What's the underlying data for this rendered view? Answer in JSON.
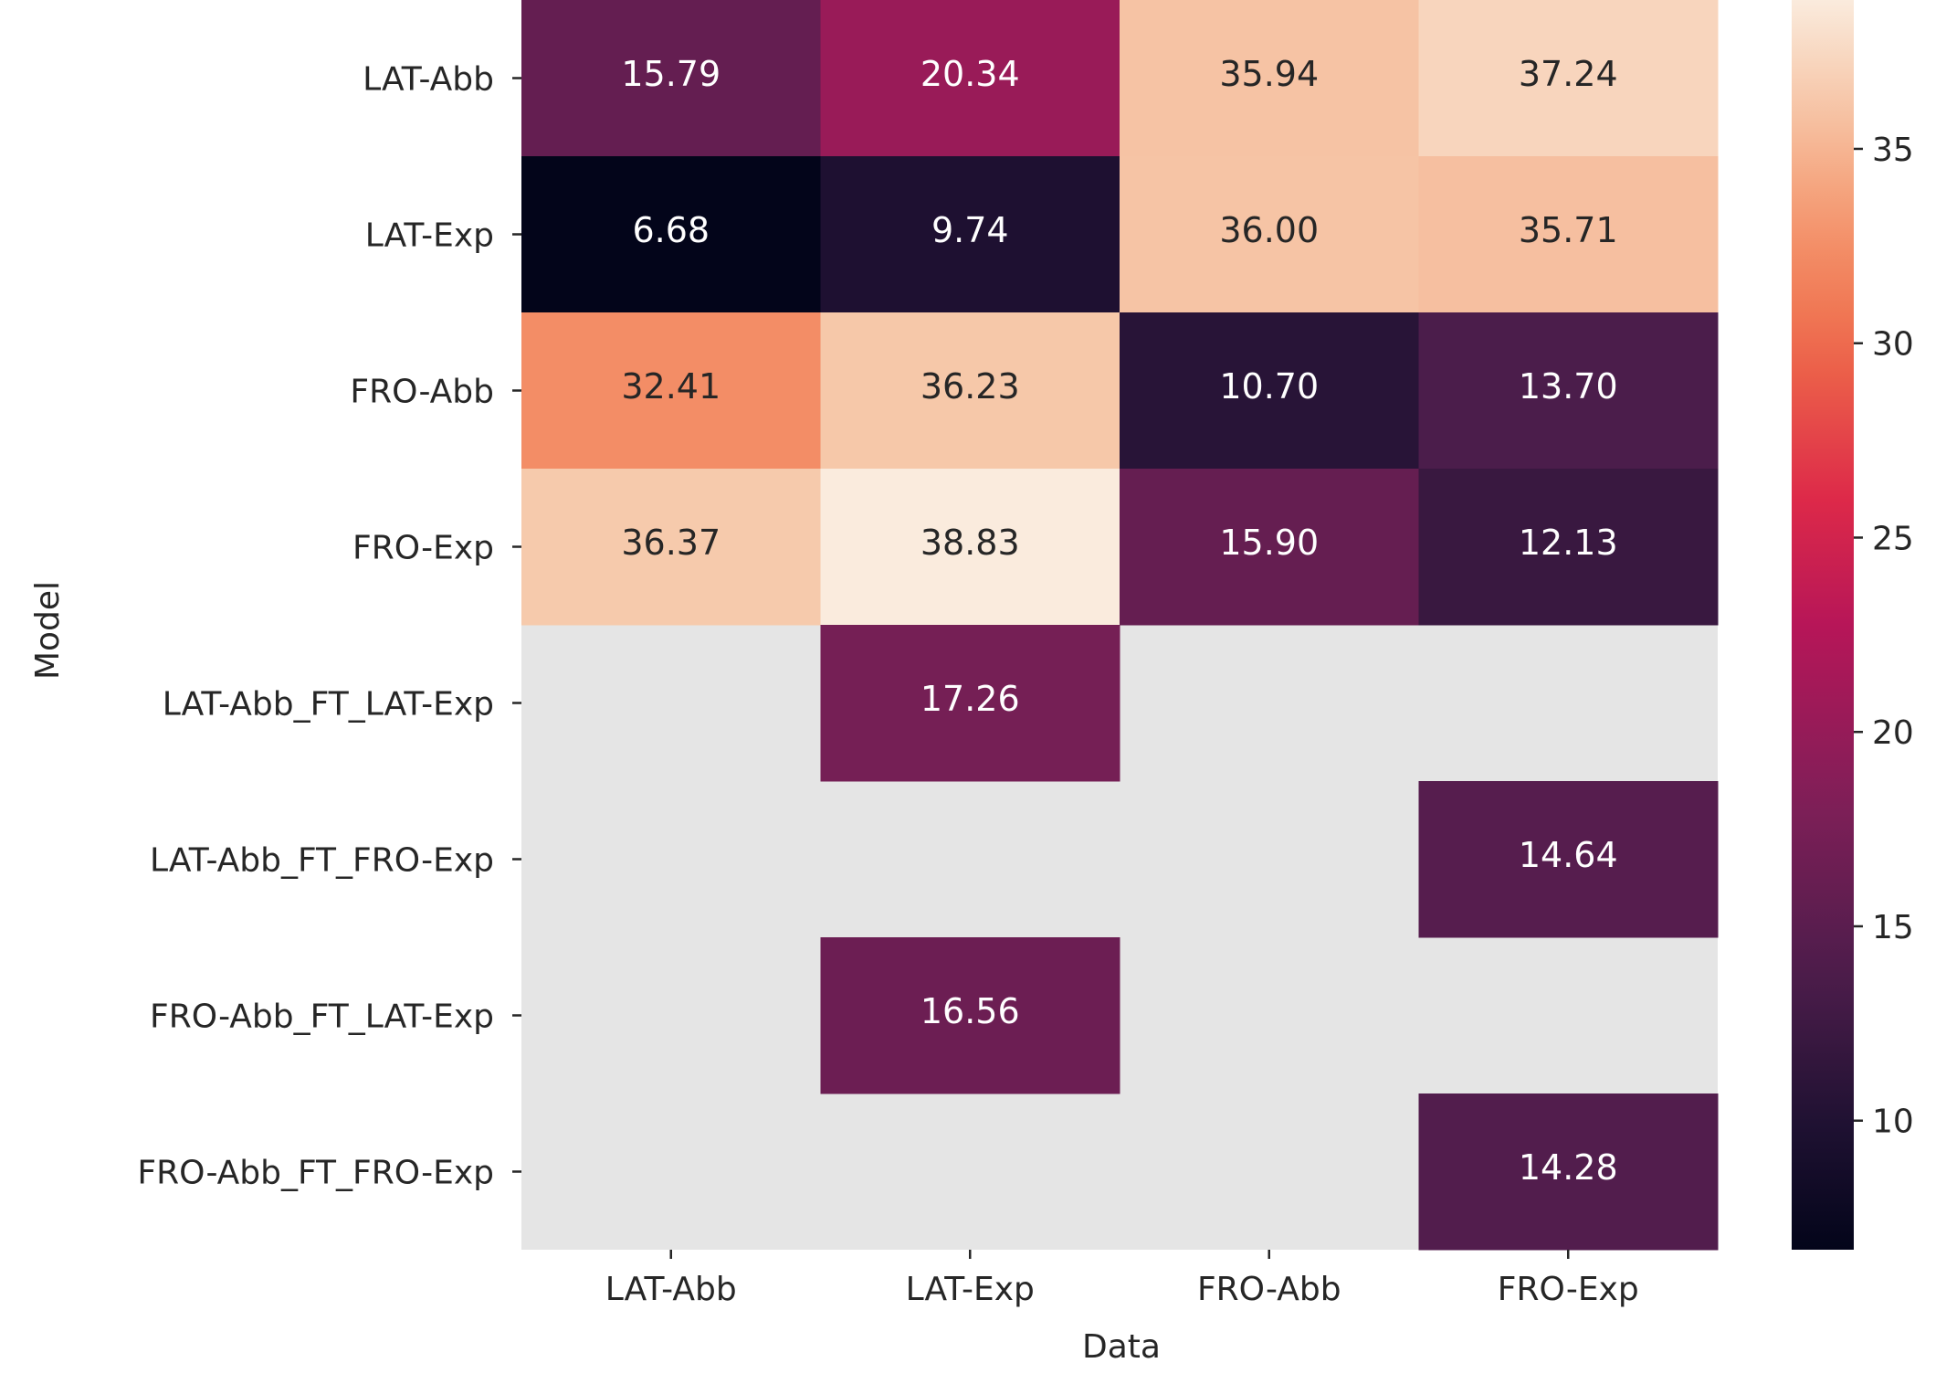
{
  "chart_data": {
    "type": "heatmap",
    "title": "",
    "xlabel": "Data",
    "ylabel": "Model",
    "x_categories": [
      "LAT-Abb",
      "LAT-Exp",
      "FRO-Abb",
      "FRO-Exp"
    ],
    "y_categories": [
      "LAT-Abb",
      "LAT-Exp",
      "FRO-Abb",
      "FRO-Exp",
      "LAT-Abb_FT_LAT-Exp",
      "LAT-Abb_FT_FRO-Exp",
      "FRO-Abb_FT_LAT-Exp",
      "FRO-Abb_FT_FRO-Exp"
    ],
    "values": [
      [
        15.79,
        20.34,
        35.94,
        37.24
      ],
      [
        6.68,
        9.74,
        36.0,
        35.71
      ],
      [
        32.41,
        36.23,
        10.7,
        13.7
      ],
      [
        36.37,
        38.83,
        15.9,
        12.13
      ],
      [
        null,
        17.26,
        null,
        null
      ],
      [
        null,
        null,
        null,
        14.64
      ],
      [
        null,
        16.56,
        null,
        null
      ],
      [
        null,
        null,
        null,
        14.28
      ]
    ],
    "colorbar": {
      "min": 6.68,
      "max": 38.83,
      "ticks": [
        10,
        15,
        20,
        25,
        30,
        35
      ]
    },
    "colormap": "rocket",
    "missing_color": "#e5e5e5",
    "annotations": true
  }
}
